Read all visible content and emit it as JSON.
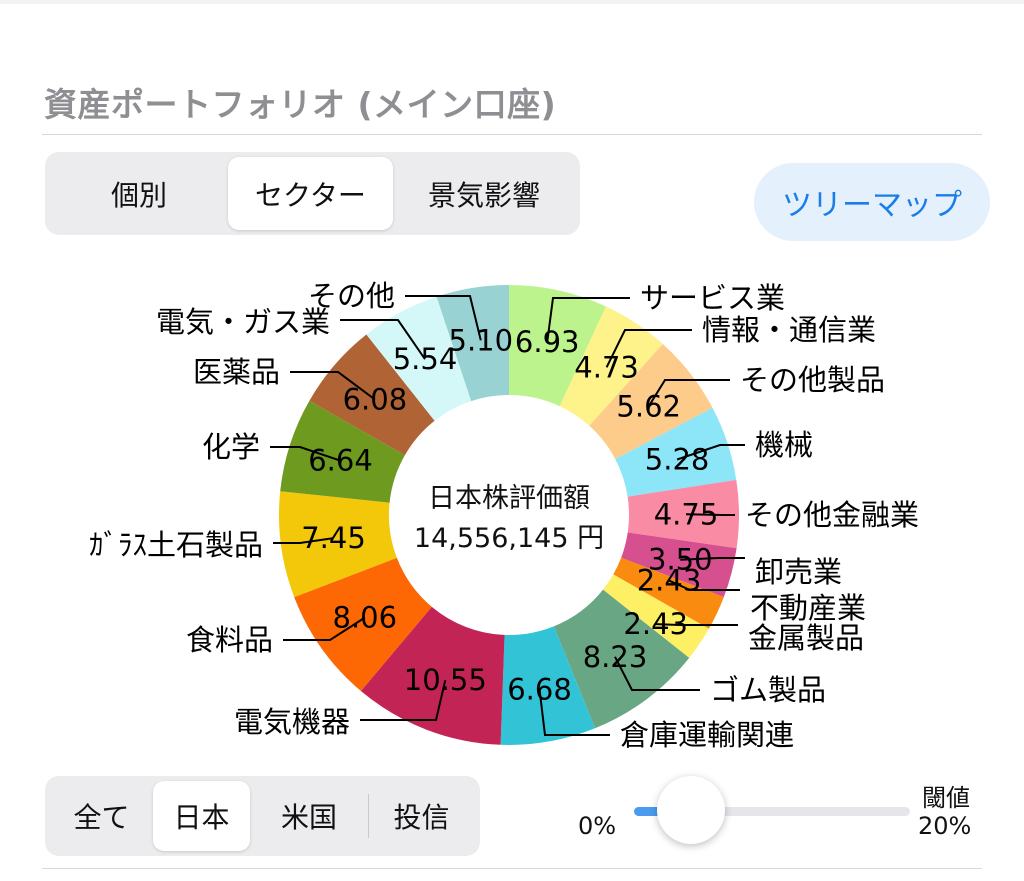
{
  "header": {
    "title": "資産ポートフォリオ (メイン口座)"
  },
  "view_tabs": [
    {
      "label": "個別",
      "active": false
    },
    {
      "label": "セクター",
      "active": true
    },
    {
      "label": "景気影響",
      "active": false
    }
  ],
  "treemap_button": {
    "label": "ツリーマップ"
  },
  "market_tabs": [
    {
      "label": "全て",
      "active": false
    },
    {
      "label": "日本",
      "active": true
    },
    {
      "label": "米国",
      "active": false
    },
    {
      "label": "投信",
      "active": false
    }
  ],
  "threshold": {
    "title": "閾値",
    "min_label": "0%",
    "max_label": "20%",
    "value_percent": 2
  },
  "chart_data": {
    "type": "pie",
    "center_title": "日本株評価額",
    "center_value": "14,556,145 円",
    "slices": [
      {
        "name": "サービス業",
        "value_label": "6.93",
        "value": 6.93,
        "color": "#bdf38d"
      },
      {
        "name": "情報・通信業",
        "value_label": "4.73",
        "value": 4.73,
        "color": "#fdf38a"
      },
      {
        "name": "その他製品",
        "value_label": "5.62",
        "value": 5.62,
        "color": "#fdcc8a"
      },
      {
        "name": "機械",
        "value_label": "5.28",
        "value": 5.28,
        "color": "#8de6f8"
      },
      {
        "name": "その他金融業",
        "value_label": "4.75",
        "value": 4.75,
        "color": "#f98ba5"
      },
      {
        "name": "卸売業",
        "value_label": "3.50",
        "value": 3.5,
        "color": "#d64f8f"
      },
      {
        "name": "不動産業",
        "value_label": "2.43",
        "value": 2.43,
        "color": "#f98b10"
      },
      {
        "name": "金属製品",
        "value_label": "2.43",
        "value": 2.43,
        "color": "#fdf064"
      },
      {
        "name": "ゴム製品",
        "value_label": "8.23",
        "value": 8.23,
        "color": "#69a683"
      },
      {
        "name": "倉庫運輸関連",
        "value_label": "6.68",
        "value": 6.68,
        "color": "#33c3d6"
      },
      {
        "name": "電気機器",
        "value_label": "10.55",
        "value": 10.55,
        "color": "#c22455"
      },
      {
        "name": "食料品",
        "value_label": "8.06",
        "value": 8.06,
        "color": "#fd6805"
      },
      {
        "name": "ｶﾞﾗｽ土石製品",
        "value_label": "7.45",
        "value": 7.45,
        "color": "#f4c80a"
      },
      {
        "name": "化学",
        "value_label": "6.64",
        "value": 6.64,
        "color": "#6e9a20"
      },
      {
        "name": "医薬品",
        "value_label": "6.08",
        "value": 6.08,
        "color": "#b06335"
      },
      {
        "name": "電気・ガス業",
        "value_label": "5.54",
        "value": 5.54,
        "color": "#d4f7f7"
      },
      {
        "name": "その他",
        "value_label": "5.10",
        "value": 5.1,
        "color": "#98d2d2"
      }
    ]
  }
}
